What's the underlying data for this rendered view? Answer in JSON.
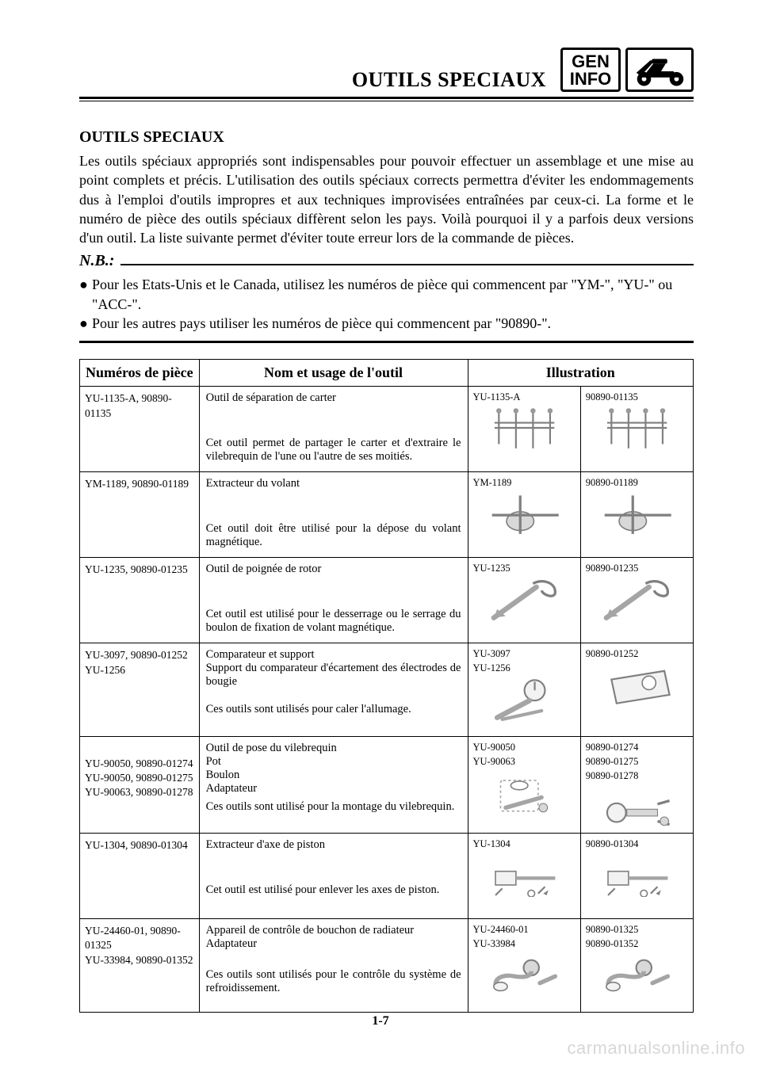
{
  "header": {
    "title": "OUTILS SPECIAUX",
    "badge_line1": "GEN",
    "badge_line2": "INFO"
  },
  "intro": {
    "section_title": "OUTILS SPECIAUX",
    "paragraph": "Les outils spéciaux appropriés sont indispensables pour pouvoir effectuer un assemblage et une mise au point complets et précis. L'utilisation des outils spéciaux corrects permettra d'éviter les endommagements dus à l'emploi d'outils impropres et aux techniques improvisées entraînées par ceux-ci. La forme et le numéro de pièce des outils spéciaux diffèrent selon les pays. Voilà pourquoi il y a parfois deux versions d'un outil. La liste suivante permet d'éviter toute erreur lors de la commande de pièces.",
    "nb_label": "N.B.:",
    "bullets": [
      "Pour les Etats-Unis et le Canada, utilisez les numéros de pièce qui commencent par \"YM-\", \"YU-\" ou \"ACC-\".",
      "Pour les autres pays utiliser les numéros de pièce qui commencent par \"90890-\"."
    ]
  },
  "table": {
    "headers": {
      "part": "Numéros de pièce",
      "name": "Nom et usage de l'outil",
      "illustration": "Illustration"
    },
    "rows": [
      {
        "part_numbers": "YU-1135-A, 90890-01135",
        "tool_name": "Outil de séparation de carter",
        "tool_desc": "Cet outil permet de partager le carter et d'extraire le vilebrequin de l'une ou l'autre de ses moitiés.",
        "ill1_caption": "YU-1135-A",
        "ill2_caption": "90890-01135"
      },
      {
        "part_numbers": "YM-1189, 90890-01189",
        "tool_name": "Extracteur du volant",
        "tool_desc": "Cet outil doit être utilisé pour la dépose du volant magnétique.",
        "ill1_caption": "YM-1189",
        "ill2_caption": "90890-01189"
      },
      {
        "part_numbers": "YU-1235, 90890-01235",
        "tool_name": "Outil de poignée de rotor",
        "tool_desc": "Cet outil est utilisé pour le desserrage ou le serrage du boulon de fixation de volant magnétique.",
        "ill1_caption": "YU-1235",
        "ill2_caption": "90890-01235"
      },
      {
        "part_numbers": "YU-3097, 90890-01252\nYU-1256",
        "tool_name": "Comparateur et support\nSupport du comparateur d'écartement des électrodes de bougie",
        "tool_desc": "Ces outils sont utilisés pour caler l'allumage.",
        "ill1_caption": "YU-3097\nYU-1256",
        "ill2_caption": "90890-01252"
      },
      {
        "part_numbers": "\nYU-90050, 90890-01274\nYU-90050, 90890-01275\nYU-90063, 90890-01278",
        "tool_name": "Outil de pose du vilebrequin\nPot\nBoulon\nAdaptateur",
        "tool_desc": "Ces outils sont utilisé pour la montage du vilebrequin.",
        "ill1_caption": "YU-90050\nYU-90063",
        "ill2_caption": "90890-01274\n90890-01275\n90890-01278"
      },
      {
        "part_numbers": "YU-1304, 90890-01304",
        "tool_name": "Extracteur d'axe de piston",
        "tool_desc": "Cet outil est utilisé pour enlever les axes de piston.",
        "ill1_caption": "YU-1304",
        "ill2_caption": "90890-01304"
      },
      {
        "part_numbers": "YU-24460-01, 90890-01325\nYU-33984, 90890-01352",
        "tool_name": "Appareil de contrôle de bouchon de radiateur\nAdaptateur",
        "tool_desc": "Ces outils sont utilisés pour le contrôle du système de refroidissement.",
        "ill1_caption": "YU-24460-01\nYU-33984",
        "ill2_caption": "90890-01325\n90890-01352"
      }
    ]
  },
  "footer": {
    "page_number": "1-7",
    "watermark": "carmanualsonline.info"
  }
}
